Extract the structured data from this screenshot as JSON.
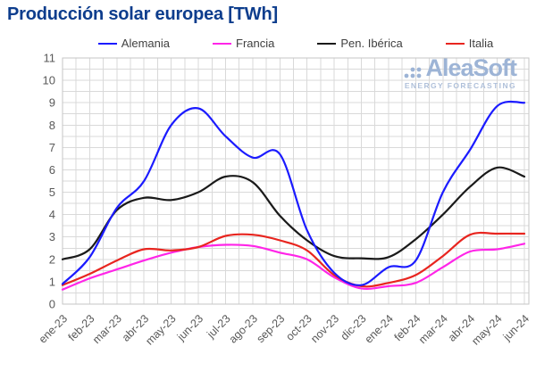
{
  "title": "Producción solar europea [TWh]",
  "watermark": {
    "brand": "AleaSoft",
    "tagline": "ENERGY FORECASTING"
  },
  "colors": {
    "title": "#0d3d8d",
    "watermark_brand": "#9db4d6",
    "watermark_tagline": "#afc0da",
    "grid": "#d9d9d9",
    "frame": "#c6c6c6",
    "tick_label": "#595959",
    "legend_label": "#404040"
  },
  "chart_data": {
    "type": "line",
    "title": "Producción solar europea [TWh]",
    "xlabel": "",
    "ylabel": "",
    "x": [
      "ene-23",
      "feb-23",
      "mar-23",
      "abr-23",
      "may-23",
      "jun-23",
      "jul-23",
      "ago-23",
      "sep-23",
      "oct-23",
      "nov-23",
      "dic-23",
      "ene-24",
      "feb-24",
      "mar-24",
      "abr-24",
      "may-24",
      "jun-24"
    ],
    "series": [
      {
        "name": "Alemania",
        "color": "#1b1bff",
        "values": [
          0.9,
          2.1,
          4.3,
          5.5,
          8.0,
          8.75,
          7.5,
          6.55,
          6.7,
          3.3,
          1.4,
          0.85,
          1.65,
          1.95,
          5.0,
          6.9,
          8.85,
          9.0
        ]
      },
      {
        "name": "Francia",
        "color": "#ff25e8",
        "values": [
          0.65,
          1.15,
          1.55,
          1.95,
          2.3,
          2.55,
          2.65,
          2.6,
          2.3,
          2.0,
          1.2,
          0.7,
          0.8,
          0.95,
          1.65,
          2.35,
          2.45,
          2.7
        ]
      },
      {
        "name": "Pen. Ibérica",
        "color": "#1a1a1a",
        "values": [
          2.0,
          2.45,
          4.2,
          4.75,
          4.65,
          5.0,
          5.7,
          5.45,
          3.95,
          2.85,
          2.15,
          2.05,
          2.1,
          2.9,
          4.0,
          5.25,
          6.1,
          5.7
        ]
      },
      {
        "name": "Italia",
        "color": "#e8251f",
        "values": [
          0.85,
          1.35,
          1.95,
          2.45,
          2.4,
          2.55,
          3.05,
          3.1,
          2.85,
          2.4,
          1.3,
          0.8,
          0.95,
          1.3,
          2.15,
          3.1,
          3.15,
          3.15
        ]
      }
    ],
    "ylim": [
      0,
      11
    ],
    "y_tick_step": 1,
    "grid_y_step": 0.5,
    "grid_x_step": 0.5,
    "grid": true,
    "legend_position": "top",
    "x_label_rotation": -45
  }
}
